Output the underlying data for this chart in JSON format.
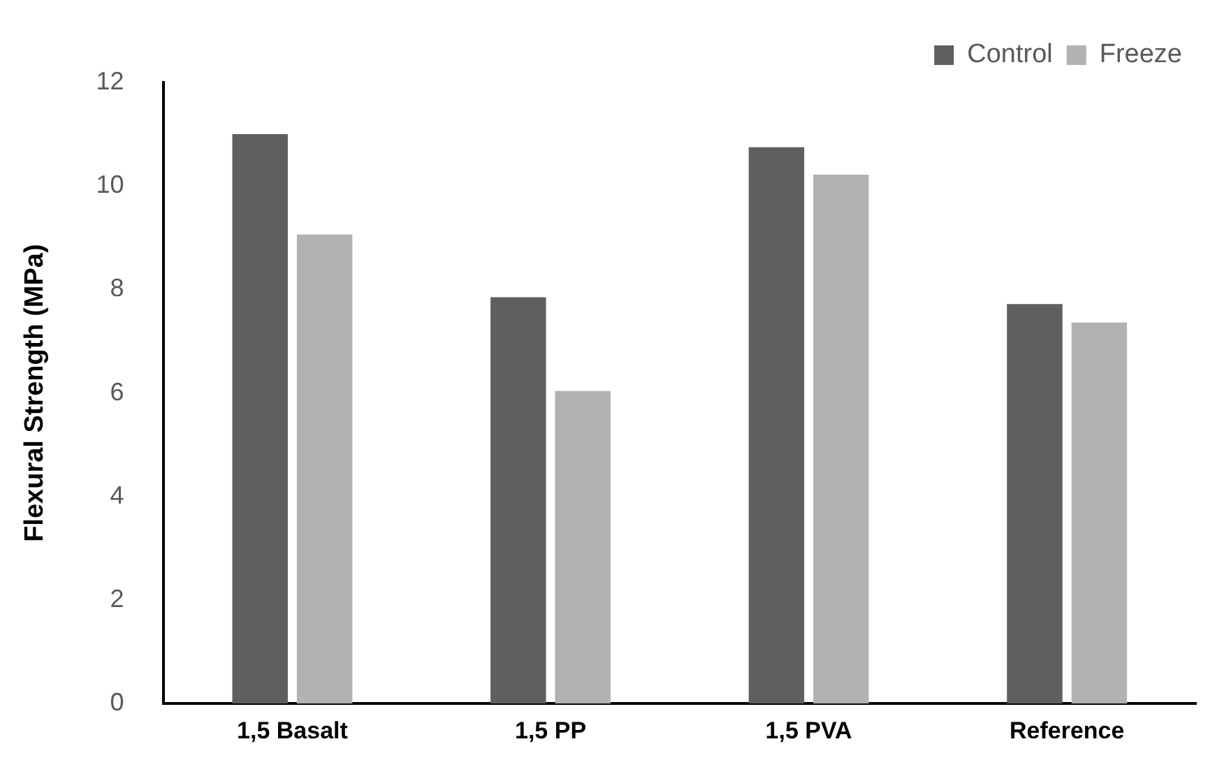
{
  "chart_data": {
    "type": "bar",
    "ylabel": "Flexural Strength (MPa)",
    "categories": [
      "1,5 Basalt",
      "1,5 PP",
      "1,5 PVA",
      "Reference"
    ],
    "series": [
      {
        "name": "Control",
        "color": "#5f5f5f",
        "values": [
          11.0,
          7.85,
          10.75,
          7.72
        ]
      },
      {
        "name": "Freeze",
        "color": "#b2b2b2",
        "values": [
          9.06,
          6.04,
          10.22,
          7.36
        ]
      }
    ],
    "ylim": [
      0,
      12
    ],
    "yticks": [
      0,
      2,
      4,
      6,
      8,
      10,
      12
    ],
    "grid": false,
    "legend": "top right"
  }
}
